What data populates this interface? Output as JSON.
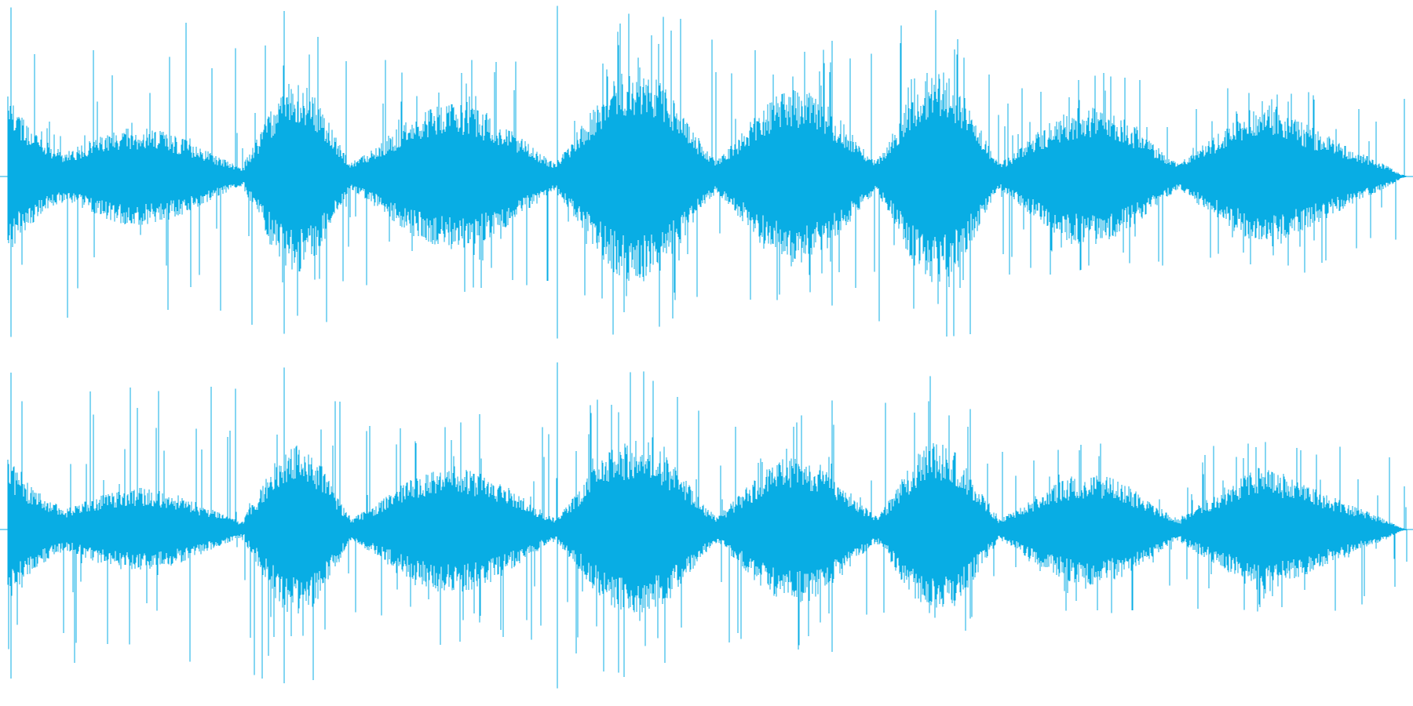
{
  "waveform": {
    "color": "#08ADE4",
    "background": "#ffffff",
    "channels": [
      {
        "name": "channel-1",
        "bursts": [
          {
            "peak": 0.97,
            "shape": "decay",
            "level": 0.42
          },
          {
            "peak": 0.52,
            "shape": "swell",
            "level": 0.28
          },
          {
            "peak": 0.95,
            "shape": "swell",
            "level": 0.55
          },
          {
            "peak": 0.72,
            "shape": "swell",
            "level": 0.42
          },
          {
            "peak": 0.98,
            "shape": "swell",
            "level": 0.62
          },
          {
            "peak": 0.78,
            "shape": "swell",
            "level": 0.5
          },
          {
            "peak": 1.0,
            "shape": "swell",
            "level": 0.62
          },
          {
            "peak": 0.62,
            "shape": "swell",
            "level": 0.4
          },
          {
            "peak": 0.58,
            "shape": "swell-fade",
            "level": 0.44
          }
        ]
      },
      {
        "name": "channel-2",
        "bursts": [
          {
            "peak": 0.9,
            "shape": "decay",
            "level": 0.38
          },
          {
            "peak": 0.46,
            "shape": "swell",
            "level": 0.24
          },
          {
            "peak": 0.93,
            "shape": "swell",
            "level": 0.5
          },
          {
            "peak": 0.7,
            "shape": "swell",
            "level": 0.36
          },
          {
            "peak": 0.96,
            "shape": "swell",
            "level": 0.52
          },
          {
            "peak": 0.74,
            "shape": "swell",
            "level": 0.42
          },
          {
            "peak": 1.0,
            "shape": "swell",
            "level": 0.5
          },
          {
            "peak": 0.52,
            "shape": "swell",
            "level": 0.32
          },
          {
            "peak": 0.52,
            "shape": "swell-fade",
            "level": 0.38
          }
        ]
      }
    ]
  }
}
